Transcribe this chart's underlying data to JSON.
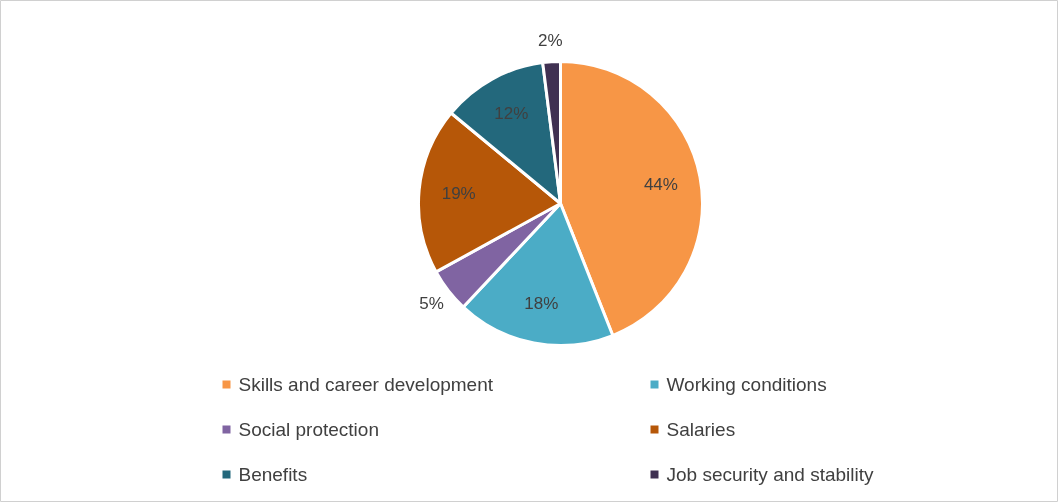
{
  "chart_data": {
    "type": "pie",
    "categories": [
      "Skills and career development",
      "Working conditions",
      "Social protection",
      "Salaries",
      "Benefits",
      "Job security and stability"
    ],
    "values": [
      44,
      18,
      5,
      19,
      12,
      2
    ],
    "colors": [
      "#f79646",
      "#4bacc6",
      "#8064a2",
      "#b65708",
      "#23687c",
      "#403152"
    ],
    "value_labels": [
      "44%",
      "18%",
      "5%",
      "19%",
      "12%",
      "2%"
    ],
    "legend": "bottom"
  }
}
